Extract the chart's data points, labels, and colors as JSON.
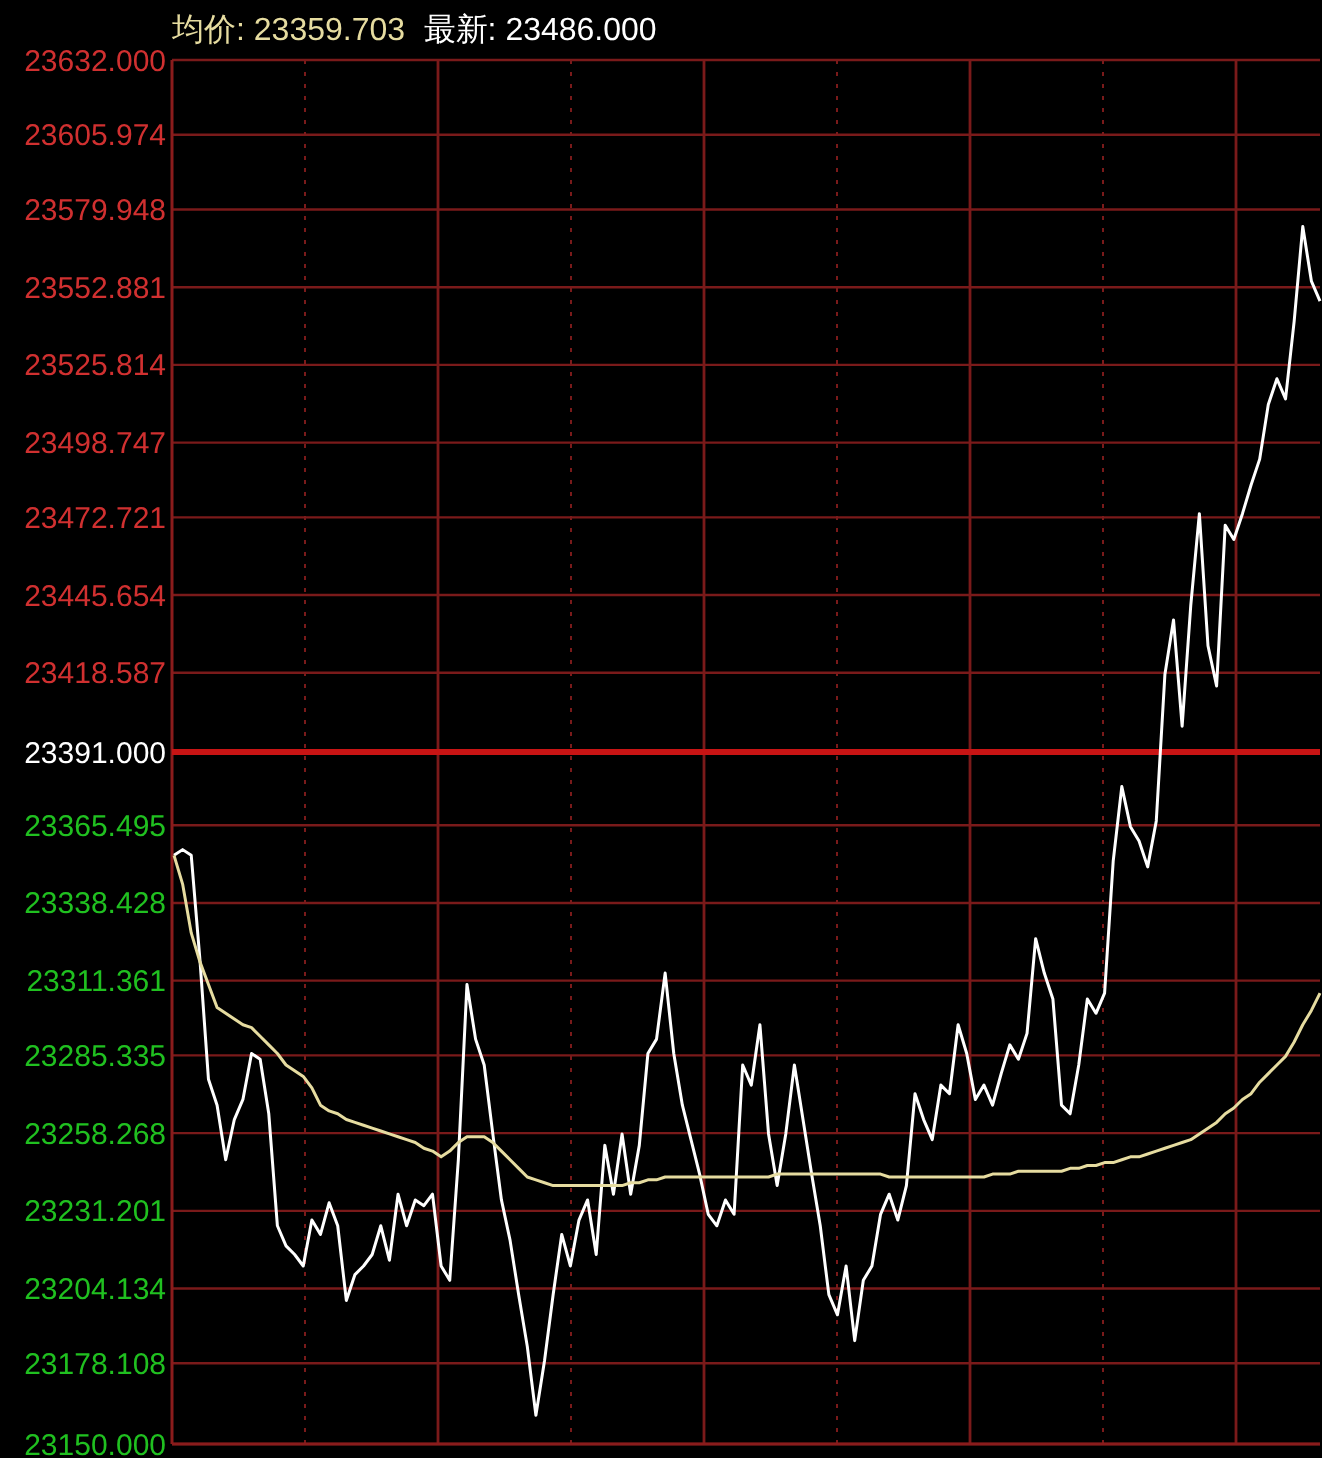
{
  "chart_data": {
    "type": "line",
    "annotations": [
      "均价: 23359.703",
      "最新: 23486.000"
    ],
    "categories": [
      null,
      null,
      null,
      null,
      null,
      null,
      null,
      null,
      null,
      null,
      null,
      null,
      null,
      null,
      null,
      null,
      null,
      null,
      null,
      null,
      null,
      null,
      null,
      null,
      null,
      null,
      null,
      null,
      null,
      null,
      null,
      null,
      null,
      null,
      null,
      null,
      null,
      null,
      null,
      null,
      null,
      null,
      null,
      null,
      null,
      null,
      null,
      null,
      null,
      null,
      null,
      null,
      null,
      null,
      null,
      null,
      null,
      null,
      null,
      null,
      null,
      null,
      null,
      null,
      null,
      null,
      null,
      null,
      null,
      null,
      null,
      null,
      null,
      null,
      null,
      null,
      null,
      null,
      null,
      null,
      null,
      null,
      null,
      null,
      null,
      null,
      null,
      null,
      null,
      null,
      null,
      null,
      null,
      null,
      null,
      null,
      null,
      null,
      null,
      null,
      null,
      null,
      null,
      null,
      null,
      null,
      null,
      null,
      null,
      null,
      null,
      null,
      null,
      null,
      null,
      null,
      null,
      null,
      null,
      null,
      null,
      null,
      null,
      null,
      null,
      null,
      null,
      null,
      null,
      null,
      null,
      null,
      null,
      null
    ],
    "ylim": [
      23150,
      23632
    ],
    "yticks": [
      {
        "value": 23150,
        "label": "23150.000"
      },
      {
        "value": 23178.108,
        "label": "23178.108"
      },
      {
        "value": 23204.134,
        "label": "23204.134"
      },
      {
        "value": 23231.201,
        "label": "23231.201"
      },
      {
        "value": 23258.268,
        "label": "23258.268"
      },
      {
        "value": 23285.335,
        "label": "23285.335"
      },
      {
        "value": 23311.361,
        "label": "23311.361"
      },
      {
        "value": 23338.428,
        "label": "23338.428"
      },
      {
        "value": 23365.495,
        "label": "23365.495"
      },
      {
        "value": 23391,
        "label": "23391.000"
      },
      {
        "value": 23418.587,
        "label": "23418.587"
      },
      {
        "value": 23445.654,
        "label": "23445.654"
      },
      {
        "value": 23472.721,
        "label": "23472.721"
      },
      {
        "value": 23498.747,
        "label": "23498.747"
      },
      {
        "value": 23525.814,
        "label": "23525.814"
      },
      {
        "value": 23552.881,
        "label": "23552.881"
      },
      {
        "value": 23579.948,
        "label": "23579.948"
      },
      {
        "value": 23605.974,
        "label": "23605.974"
      },
      {
        "value": 23632,
        "label": "23632.000"
      }
    ],
    "grid": true,
    "ref_lines": [
      {
        "axis": "y",
        "value": 23391,
        "color": "#c81414"
      }
    ],
    "series": [
      {
        "color": "#ffffff",
        "values": [
          23355,
          23357,
          23355,
          23319,
          23277,
          23268,
          23249,
          23263,
          23270,
          23286,
          23284,
          23265,
          23226,
          23219,
          23216,
          23212,
          23228,
          23223,
          23234,
          23226,
          23200,
          23209,
          23212,
          23216,
          23226,
          23214,
          23237,
          23226,
          23235,
          23233,
          23237,
          23212,
          23207,
          23249,
          23310,
          23291,
          23282,
          23258,
          23235,
          23221,
          23202,
          23184,
          23160,
          23179,
          23202,
          23223,
          23212,
          23228,
          23235,
          23216,
          23254,
          23237,
          23258,
          23237,
          23254,
          23286,
          23291,
          23314,
          23286,
          23268,
          23256,
          23244,
          23230,
          23226,
          23235,
          23230,
          23282,
          23275,
          23296,
          23258,
          23240,
          23258,
          23282,
          23263,
          23244,
          23226,
          23202,
          23195,
          23212,
          23186,
          23207,
          23212,
          23230,
          23237,
          23228,
          23240,
          23272,
          23263,
          23256,
          23275,
          23272,
          23296,
          23286,
          23270,
          23275,
          23268,
          23279,
          23289,
          23284,
          23293,
          23326,
          23314,
          23305,
          23268,
          23265,
          23282,
          23305,
          23300,
          23307,
          23353,
          23379,
          23365,
          23360,
          23351,
          23367,
          23418,
          23437,
          23400,
          23442,
          23474,
          23428,
          23414,
          23470,
          23465,
          23474,
          23484,
          23493,
          23512,
          23521,
          23514,
          23541,
          23574,
          23555,
          23548
        ]
      },
      {
        "color": "#e6dca0",
        "values": [
          23355,
          23345,
          23328,
          23318,
          23310,
          23302,
          23300,
          23298,
          23296,
          23295,
          23292,
          23289,
          23286,
          23282,
          23280,
          23278,
          23274,
          23268,
          23266,
          23265,
          23263,
          23262,
          23261,
          23260,
          23259,
          23258,
          23257,
          23256,
          23255,
          23253,
          23252,
          23250,
          23252,
          23255,
          23257,
          23257,
          23257,
          23255,
          23252,
          23249,
          23246,
          23243,
          23242,
          23241,
          23240,
          23240,
          23240,
          23240,
          23240,
          23240,
          23240,
          23240,
          23240,
          23241,
          23241,
          23242,
          23242,
          23243,
          23243,
          23243,
          23243,
          23243,
          23243,
          23243,
          23243,
          23243,
          23243,
          23243,
          23243,
          23243,
          23244,
          23244,
          23244,
          23244,
          23244,
          23244,
          23244,
          23244,
          23244,
          23244,
          23244,
          23244,
          23244,
          23243,
          23243,
          23243,
          23243,
          23243,
          23243,
          23243,
          23243,
          23243,
          23243,
          23243,
          23243,
          23244,
          23244,
          23244,
          23245,
          23245,
          23245,
          23245,
          23245,
          23245,
          23246,
          23246,
          23247,
          23247,
          23248,
          23248,
          23249,
          23250,
          23250,
          23251,
          23252,
          23253,
          23254,
          23255,
          23256,
          23258,
          23260,
          23262,
          23265,
          23267,
          23270,
          23272,
          23276,
          23279,
          23282,
          23285,
          23290,
          23296,
          23301,
          23307
        ]
      }
    ]
  }
}
